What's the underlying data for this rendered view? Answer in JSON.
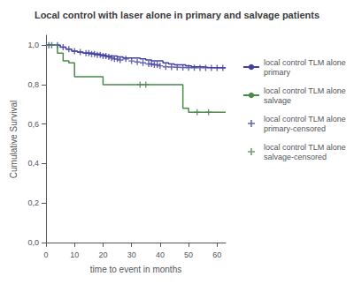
{
  "chart_data": {
    "type": "line",
    "title": "Local control with laser alone in primary and salvage patients",
    "xlabel": "time to event in months",
    "ylabel": "Cumulative Survival",
    "xlim": [
      0,
      63
    ],
    "ylim": [
      -0.005,
      1.05
    ],
    "xticks": [
      0,
      10,
      20,
      30,
      40,
      50,
      60
    ],
    "yticks": [
      {
        "value": 0.0,
        "label": "0,0"
      },
      {
        "value": 0.2,
        "label": "0,2"
      },
      {
        "value": 0.4,
        "label": "0,4"
      },
      {
        "value": 0.6,
        "label": "0,6"
      },
      {
        "value": 0.8,
        "label": "0,8"
      },
      {
        "value": 1.0,
        "label": "1,0"
      }
    ],
    "grid": false,
    "legend": "right",
    "series": [
      {
        "name": "local control TLM alone\nprimary",
        "type": "step",
        "color": "#4040a0",
        "x": [
          0,
          3,
          5,
          7,
          9,
          11,
          13,
          17,
          19,
          21,
          25,
          27,
          33,
          35,
          37,
          41,
          43,
          45,
          49,
          51,
          55,
          57,
          63
        ],
        "values": [
          1.0,
          1.0,
          0.99,
          0.98,
          0.97,
          0.965,
          0.96,
          0.955,
          0.95,
          0.945,
          0.94,
          0.935,
          0.93,
          0.925,
          0.92,
          0.91,
          0.905,
          0.9,
          0.895,
          0.89,
          0.887,
          0.885,
          0.885
        ]
      },
      {
        "name": "local control TLM alone\nsalvage",
        "type": "step",
        "color": "#4a8a4a",
        "x": [
          0,
          4,
          6,
          8,
          10,
          18,
          20,
          30,
          48,
          50,
          63
        ],
        "values": [
          1.0,
          0.96,
          0.92,
          0.91,
          0.84,
          0.84,
          0.8,
          0.8,
          0.68,
          0.66,
          0.66
        ]
      },
      {
        "name": "local control TLM alone\nprimary-censored",
        "type": "scatter",
        "marker": "plus",
        "color": "#4040a0",
        "x": [
          1,
          2,
          4,
          6,
          8,
          10,
          12,
          14,
          15,
          16,
          17,
          18,
          19,
          20,
          21,
          22,
          23,
          24,
          25,
          26,
          28,
          30,
          32,
          34,
          36,
          37,
          38,
          39,
          40,
          42,
          44,
          46,
          48,
          50,
          52,
          54,
          56,
          58,
          60,
          62
        ],
        "values": [
          1.0,
          1.0,
          1.0,
          0.99,
          0.98,
          0.97,
          0.965,
          0.96,
          0.96,
          0.955,
          0.955,
          0.95,
          0.95,
          0.945,
          0.945,
          0.94,
          0.935,
          0.93,
          0.93,
          0.925,
          0.93,
          0.92,
          0.915,
          0.91,
          0.905,
          0.905,
          0.9,
          0.9,
          0.895,
          0.89,
          0.889,
          0.888,
          0.887,
          0.886,
          0.886,
          0.885,
          0.885,
          0.885,
          0.885,
          0.885
        ]
      },
      {
        "name": "local control TLM alone\nsalvage-censored",
        "type": "scatter",
        "marker": "plus",
        "color": "#4a8a4a",
        "x": [
          33,
          35,
          53,
          57
        ],
        "values": [
          0.8,
          0.8,
          0.66,
          0.66
        ]
      }
    ]
  }
}
